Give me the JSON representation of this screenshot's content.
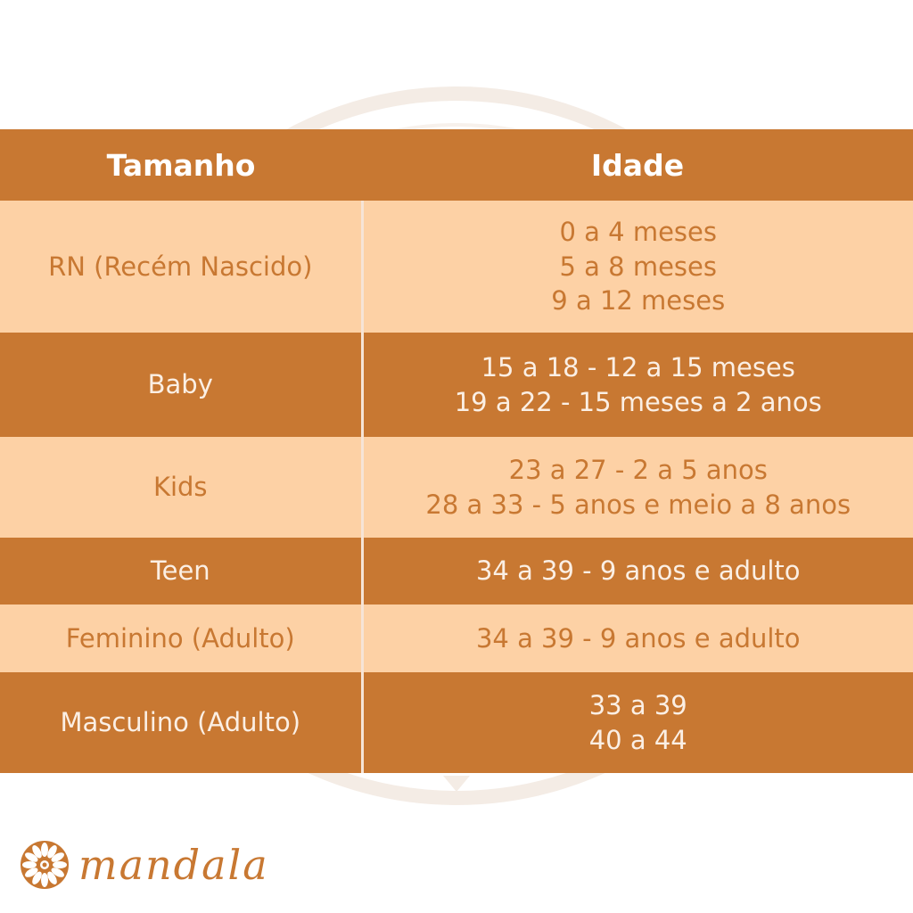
{
  "table": {
    "headers": [
      "Tamanho",
      "Idade"
    ],
    "rows": [
      {
        "size": "RN (Recém Nascido)",
        "ages": [
          "0 a 4 meses",
          "5 a 8 meses",
          "9 a 12 meses"
        ]
      },
      {
        "size": "Baby",
        "ages": [
          "15 a 18 - 12 a 15 meses",
          "19 a 22 - 15 meses a 2 anos"
        ]
      },
      {
        "size": "Kids",
        "ages": [
          "23 a 27 - 2 a 5 anos",
          "28 a 33 - 5 anos e meio a 8 anos"
        ]
      },
      {
        "size": "Teen",
        "ages": [
          "34 a 39 - 9 anos e adulto"
        ]
      },
      {
        "size": "Feminino (Adulto)",
        "ages": [
          "34 a 39 - 9 anos e adulto"
        ]
      },
      {
        "size": "Masculino (Adulto)",
        "ages": [
          "33 a 39",
          "40 a 44"
        ]
      }
    ]
  },
  "brand": {
    "name": "mandala",
    "logo_icon": "mandala-flower-icon"
  },
  "colors": {
    "primary": "#c87832",
    "light_row": "#fdd1a5",
    "white": "#ffffff"
  }
}
